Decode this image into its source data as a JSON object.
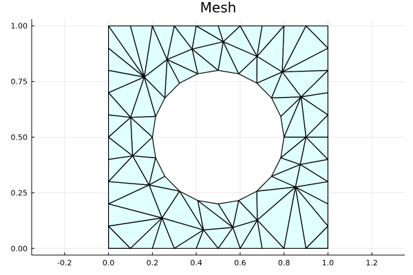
{
  "title": "Mesh",
  "colors": {
    "fill": "#e0ffff",
    "edge": "#000000",
    "grid": "#e8e8e8",
    "axis": "#000000"
  },
  "chart_data": {
    "type": "triangle-mesh",
    "title": "Mesh",
    "xlim": [
      -0.35,
      1.35
    ],
    "ylim": [
      -0.03,
      1.03
    ],
    "grid": true,
    "legend": "none",
    "xticks": [
      -0.2,
      0.0,
      0.2,
      0.4,
      0.6,
      0.8,
      1.0,
      1.2
    ],
    "xtick_labels": [
      "-0.2",
      "0.0",
      "0.2",
      "0.4",
      "0.6",
      "0.8",
      "1.0",
      "1.2"
    ],
    "yticks": [
      0.0,
      0.25,
      0.5,
      0.75,
      1.0
    ],
    "ytick_labels": [
      "0.00",
      "0.25",
      "0.50",
      "0.75",
      "1.00"
    ],
    "domain": {
      "square": [
        [
          0,
          0
        ],
        [
          1,
          1
        ]
      ],
      "hole_center": [
        0.5,
        0.5
      ],
      "hole_radius": 0.3
    },
    "nodes": [
      [
        0.0,
        0.0
      ],
      [
        0.1,
        0.0
      ],
      [
        0.2,
        0.0
      ],
      [
        0.3,
        0.0
      ],
      [
        0.4,
        0.0
      ],
      [
        0.5,
        0.0
      ],
      [
        0.6,
        0.0
      ],
      [
        0.7,
        0.0
      ],
      [
        0.8,
        0.0
      ],
      [
        0.9,
        0.0
      ],
      [
        1.0,
        0.0
      ],
      [
        0.0,
        1.0
      ],
      [
        0.1,
        1.0
      ],
      [
        0.2,
        1.0
      ],
      [
        0.3,
        1.0
      ],
      [
        0.4,
        1.0
      ],
      [
        0.5,
        1.0
      ],
      [
        0.6,
        1.0
      ],
      [
        0.7,
        1.0
      ],
      [
        0.8,
        1.0
      ],
      [
        0.9,
        1.0
      ],
      [
        1.0,
        1.0
      ],
      [
        0.0,
        0.1
      ],
      [
        0.0,
        0.2
      ],
      [
        0.0,
        0.3
      ],
      [
        0.0,
        0.4
      ],
      [
        0.0,
        0.5
      ],
      [
        0.0,
        0.6
      ],
      [
        0.0,
        0.7
      ],
      [
        0.0,
        0.8
      ],
      [
        0.0,
        0.9
      ],
      [
        1.0,
        0.1
      ],
      [
        1.0,
        0.2
      ],
      [
        1.0,
        0.3
      ],
      [
        1.0,
        0.4
      ],
      [
        1.0,
        0.5
      ],
      [
        1.0,
        0.6
      ],
      [
        1.0,
        0.7
      ],
      [
        1.0,
        0.8
      ],
      [
        1.0,
        0.9
      ],
      [
        0.8,
        0.5
      ],
      [
        0.785,
        0.593
      ],
      [
        0.743,
        0.676
      ],
      [
        0.676,
        0.743
      ],
      [
        0.593,
        0.785
      ],
      [
        0.5,
        0.8
      ],
      [
        0.407,
        0.785
      ],
      [
        0.324,
        0.743
      ],
      [
        0.257,
        0.676
      ],
      [
        0.215,
        0.593
      ],
      [
        0.2,
        0.5
      ],
      [
        0.215,
        0.407
      ],
      [
        0.257,
        0.324
      ],
      [
        0.324,
        0.257
      ],
      [
        0.407,
        0.215
      ],
      [
        0.5,
        0.2
      ],
      [
        0.593,
        0.215
      ],
      [
        0.676,
        0.257
      ],
      [
        0.743,
        0.324
      ],
      [
        0.785,
        0.407
      ],
      [
        0.9,
        0.5
      ],
      [
        0.878,
        0.681
      ],
      [
        0.792,
        0.793
      ],
      [
        0.677,
        0.863
      ],
      [
        0.523,
        0.929
      ],
      [
        0.381,
        0.896
      ],
      [
        0.267,
        0.849
      ],
      [
        0.163,
        0.77
      ],
      [
        0.101,
        0.589
      ],
      [
        0.11,
        0.416
      ],
      [
        0.185,
        0.285
      ],
      [
        0.244,
        0.137
      ],
      [
        0.433,
        0.083
      ],
      [
        0.567,
        0.094
      ],
      [
        0.678,
        0.127
      ],
      [
        0.852,
        0.276
      ],
      [
        0.874,
        0.377
      ]
    ],
    "triangles": [
      [
        0,
        1,
        22
      ],
      [
        1,
        2,
        71
      ],
      [
        2,
        3,
        71
      ],
      [
        3,
        4,
        72
      ],
      [
        4,
        5,
        72
      ],
      [
        5,
        6,
        73
      ],
      [
        6,
        7,
        74
      ],
      [
        7,
        8,
        74
      ],
      [
        8,
        9,
        75
      ],
      [
        9,
        10,
        31
      ],
      [
        1,
        71,
        22
      ],
      [
        22,
        71,
        23
      ],
      [
        3,
        72,
        71
      ],
      [
        72,
        5,
        73
      ],
      [
        73,
        6,
        74
      ],
      [
        74,
        8,
        75
      ],
      [
        9,
        31,
        75
      ],
      [
        31,
        32,
        75
      ],
      [
        23,
        71,
        70
      ],
      [
        71,
        72,
        53
      ],
      [
        71,
        53,
        70
      ],
      [
        72,
        54,
        53
      ],
      [
        72,
        73,
        54
      ],
      [
        73,
        55,
        54
      ],
      [
        73,
        56,
        55
      ],
      [
        73,
        74,
        56
      ],
      [
        74,
        57,
        56
      ],
      [
        74,
        75,
        57
      ],
      [
        75,
        58,
        57
      ],
      [
        75,
        32,
        33
      ],
      [
        75,
        33,
        76
      ],
      [
        75,
        76,
        58
      ],
      [
        76,
        59,
        58
      ],
      [
        76,
        33,
        34
      ],
      [
        76,
        34,
        60
      ],
      [
        76,
        60,
        59
      ],
      [
        60,
        40,
        59
      ],
      [
        34,
        35,
        60
      ],
      [
        35,
        36,
        60
      ],
      [
        60,
        36,
        61
      ],
      [
        60,
        61,
        40
      ],
      [
        40,
        61,
        41
      ],
      [
        61,
        42,
        41
      ],
      [
        61,
        36,
        37
      ],
      [
        61,
        37,
        38
      ],
      [
        61,
        38,
        62
      ],
      [
        61,
        62,
        42
      ],
      [
        62,
        43,
        42
      ],
      [
        62,
        38,
        39
      ],
      [
        62,
        39,
        20
      ],
      [
        62,
        20,
        19
      ],
      [
        62,
        19,
        63
      ],
      [
        62,
        63,
        43
      ],
      [
        63,
        44,
        43
      ],
      [
        63,
        19,
        18
      ],
      [
        63,
        18,
        17
      ],
      [
        63,
        17,
        64
      ],
      [
        63,
        64,
        44
      ],
      [
        64,
        45,
        44
      ],
      [
        64,
        17,
        16
      ],
      [
        64,
        16,
        15
      ],
      [
        64,
        15,
        65
      ],
      [
        64,
        65,
        45
      ],
      [
        65,
        46,
        45
      ],
      [
        65,
        15,
        14
      ],
      [
        65,
        14,
        66
      ],
      [
        65,
        66,
        46
      ],
      [
        66,
        47,
        46
      ],
      [
        66,
        14,
        13
      ],
      [
        66,
        13,
        67
      ],
      [
        66,
        67,
        48
      ],
      [
        66,
        48,
        47
      ],
      [
        67,
        13,
        12
      ],
      [
        67,
        12,
        11
      ],
      [
        67,
        11,
        30
      ],
      [
        67,
        30,
        29
      ],
      [
        67,
        29,
        28
      ],
      [
        67,
        28,
        68
      ],
      [
        67,
        68,
        49
      ],
      [
        67,
        49,
        48
      ],
      [
        68,
        28,
        27
      ],
      [
        68,
        27,
        26
      ],
      [
        68,
        26,
        69
      ],
      [
        68,
        69,
        50
      ],
      [
        68,
        50,
        49
      ],
      [
        69,
        26,
        25
      ],
      [
        69,
        25,
        24
      ],
      [
        69,
        24,
        70
      ],
      [
        69,
        70,
        51
      ],
      [
        69,
        51,
        50
      ],
      [
        70,
        24,
        23
      ],
      [
        70,
        52,
        51
      ],
      [
        70,
        53,
        52
      ],
      [
        0,
        22,
        1
      ],
      [
        10,
        31,
        9
      ],
      [
        39,
        21,
        20
      ]
    ]
  }
}
